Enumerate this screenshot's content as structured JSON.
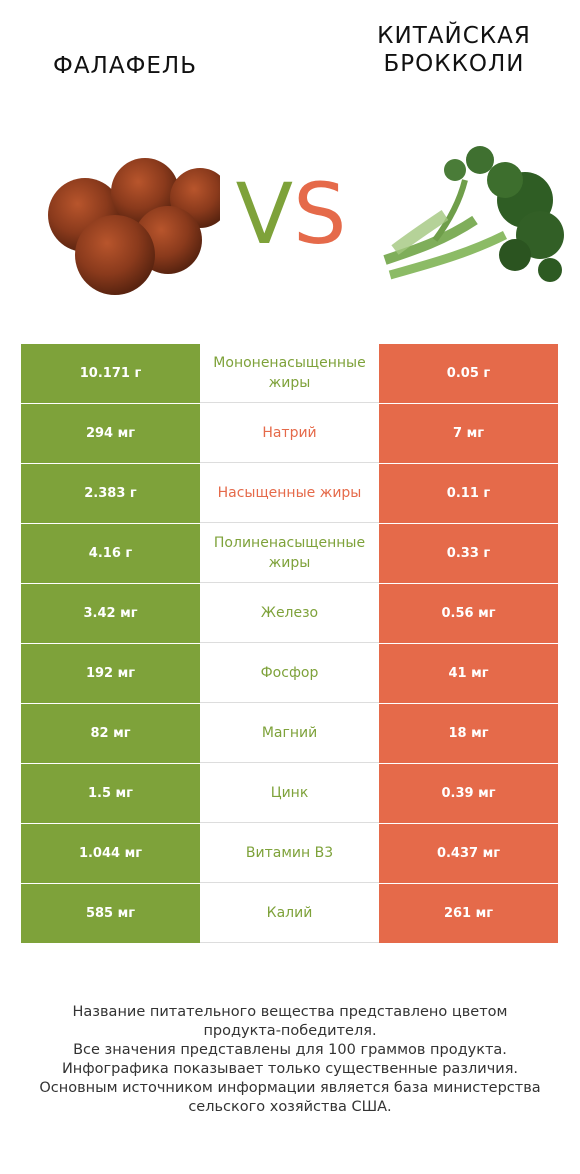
{
  "header": {
    "left_title": "ФАЛАФЕЛЬ",
    "right_title_line1": "КИТАЙСКАЯ",
    "right_title_line2": "БРОККОЛИ",
    "vs_v": "V",
    "vs_s": "S"
  },
  "colors": {
    "winner_left": "#7ea23a",
    "winner_right": "#e56a4a"
  },
  "rows": [
    {
      "left": "10.171 г",
      "nutrient": "Мононенасыщенные жиры",
      "right": "0.05 г",
      "winner": "left"
    },
    {
      "left": "294 мг",
      "nutrient": "Натрий",
      "right": "7 мг",
      "winner": "right"
    },
    {
      "left": "2.383 г",
      "nutrient": "Насыщенные жиры",
      "right": "0.11 г",
      "winner": "right"
    },
    {
      "left": "4.16 г",
      "nutrient": "Полиненасыщенные жиры",
      "right": "0.33 г",
      "winner": "left"
    },
    {
      "left": "3.42 мг",
      "nutrient": "Железо",
      "right": "0.56 мг",
      "winner": "left"
    },
    {
      "left": "192 мг",
      "nutrient": "Фосфор",
      "right": "41 мг",
      "winner": "left"
    },
    {
      "left": "82 мг",
      "nutrient": "Магний",
      "right": "18 мг",
      "winner": "left"
    },
    {
      "left": "1.5 мг",
      "nutrient": "Цинк",
      "right": "0.39 мг",
      "winner": "left"
    },
    {
      "left": "1.044 мг",
      "nutrient": "Витамин B3",
      "right": "0.437 мг",
      "winner": "left"
    },
    {
      "left": "585 мг",
      "nutrient": "Калий",
      "right": "261 мг",
      "winner": "left"
    }
  ],
  "footer": {
    "line1": "Название питательного вещества представлено цветом",
    "line2": "продукта-победителя.",
    "line3": "Все значения представлены для 100 граммов продукта.",
    "line4": "Инфографика показывает только существенные различия.",
    "line5": "Основным источником информации является база министерства",
    "line6": "сельского хозяйства США."
  }
}
